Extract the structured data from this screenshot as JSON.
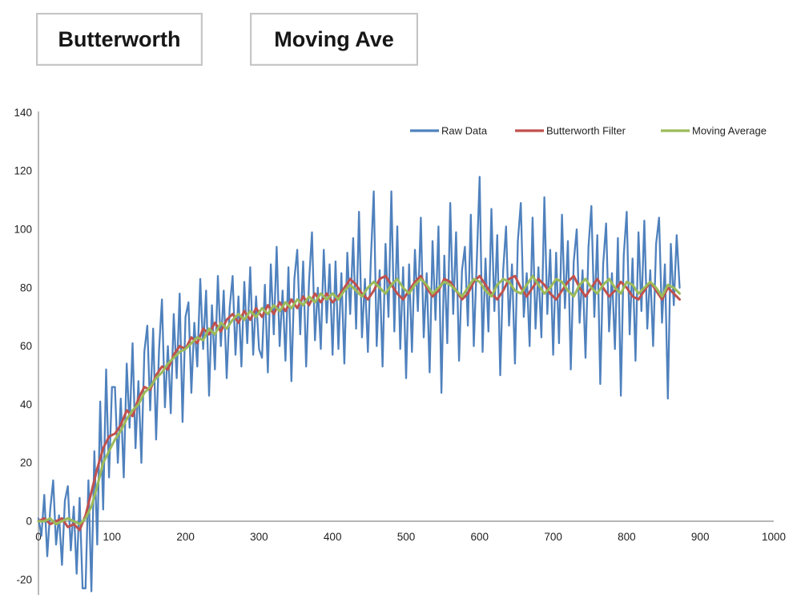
{
  "buttons": [
    {
      "label": "Butterworth"
    },
    {
      "label": "Moving Ave"
    }
  ],
  "chart_data": {
    "type": "line",
    "title": "",
    "xlabel": "",
    "ylabel": "",
    "xlim": [
      0,
      1000
    ],
    "ylim": [
      -20,
      140
    ],
    "x_ticks": [
      0,
      100,
      200,
      300,
      400,
      500,
      600,
      700,
      800,
      900,
      1000
    ],
    "y_ticks": [
      140,
      120,
      100,
      80,
      60,
      40,
      20,
      0,
      -20
    ],
    "grid": false,
    "legend_position": "top-right-inside",
    "colors": {
      "axis": "#9d9d9d",
      "tick_text": "#1f1f1f",
      "raw": "#4F81BD",
      "butterworth": "#C0504D",
      "moving_average": "#9BBB59"
    },
    "series": [
      {
        "name": "Raw Data",
        "color": "#4F81BD",
        "stroke_width": 2.3,
        "x_start": 0,
        "x_step": 4,
        "values": [
          1,
          -5,
          9,
          -12,
          4,
          14,
          -8,
          2,
          -15,
          7,
          12,
          -10,
          5,
          -18,
          8,
          -23,
          -23,
          14,
          -24,
          24,
          -8,
          41,
          4,
          52,
          15,
          46,
          46,
          20,
          42,
          15,
          54,
          32,
          61,
          25,
          48,
          20,
          58,
          67,
          38,
          66,
          28,
          59,
          76,
          39,
          60,
          37,
          71,
          49,
          78,
          34,
          70,
          75,
          44,
          68,
          53,
          83,
          59,
          79,
          43,
          74,
          52,
          84,
          60,
          79,
          49,
          73,
          84,
          57,
          77,
          53,
          82,
          61,
          87,
          57,
          77,
          59,
          56,
          81,
          51,
          88,
          64,
          94,
          60,
          79,
          55,
          87,
          48,
          83,
          93,
          64,
          89,
          53,
          82,
          99,
          62,
          80,
          59,
          93,
          68,
          88,
          57,
          89,
          59,
          85,
          54,
          92,
          71,
          97,
          66,
          106,
          63,
          83,
          58,
          89,
          113,
          60,
          86,
          53,
          95,
          70,
          113,
          65,
          101,
          59,
          87,
          49,
          88,
          58,
          93,
          72,
          104,
          63,
          85,
          51,
          96,
          69,
          101,
          44,
          91,
          61,
          109,
          71,
          99,
          55,
          86,
          94,
          67,
          105,
          60,
          88,
          118,
          58,
          90,
          65,
          107,
          72,
          98,
          50,
          86,
          101,
          67,
          88,
          54,
          96,
          109,
          70,
          85,
          60,
          104,
          66,
          87,
          63,
          111,
          71,
          93,
          57,
          92,
          61,
          105,
          73,
          96,
          52,
          89,
          100,
          68,
          86,
          56,
          94,
          108,
          70,
          98,
          47,
          88,
          102,
          65,
          85,
          59,
          97,
          43,
          91,
          106,
          64,
          90,
          55,
          99,
          72,
          103,
          66,
          86,
          60,
          95,
          104,
          68,
          88,
          42,
          95,
          74,
          98,
          80
        ]
      },
      {
        "name": "Butterworth Filter",
        "color": "#C0504D",
        "stroke_width": 3,
        "x_start": 0,
        "x_step": 8,
        "values": [
          0,
          1,
          -1,
          0,
          1,
          -2,
          -1,
          -3,
          2,
          10,
          18,
          25,
          29,
          30,
          33,
          38,
          36,
          42,
          46,
          45,
          50,
          53,
          52,
          57,
          60,
          59,
          63,
          61,
          66,
          64,
          68,
          65,
          69,
          71,
          68,
          72,
          69,
          73,
          70,
          74,
          71,
          75,
          72,
          76,
          73,
          77,
          74,
          78,
          75,
          78,
          75,
          77,
          80,
          83,
          81,
          78,
          76,
          79,
          83,
          84,
          81,
          78,
          76,
          79,
          82,
          84,
          80,
          77,
          79,
          83,
          82,
          79,
          76,
          78,
          82,
          84,
          81,
          78,
          76,
          79,
          83,
          84,
          80,
          77,
          80,
          83,
          81,
          78,
          76,
          79,
          82,
          84,
          80,
          77,
          80,
          83,
          80,
          77,
          79,
          82,
          80,
          77,
          76,
          79,
          82,
          79,
          76,
          80,
          78,
          76
        ]
      },
      {
        "name": "Moving Average",
        "color": "#9BBB59",
        "stroke_width": 3,
        "x_start": 0,
        "x_step": 8,
        "values": [
          0,
          0,
          1,
          -1,
          0,
          1,
          0,
          -1,
          1,
          5,
          12,
          20,
          24,
          28,
          31,
          35,
          38,
          40,
          44,
          46,
          49,
          51,
          54,
          56,
          58,
          59,
          61,
          63,
          62,
          66,
          64,
          68,
          66,
          69,
          71,
          69,
          72,
          70,
          73,
          71,
          74,
          72,
          75,
          73,
          76,
          74,
          77,
          75,
          78,
          76,
          78,
          76,
          79,
          81,
          79,
          77,
          80,
          82,
          80,
          78,
          81,
          83,
          80,
          78,
          81,
          83,
          81,
          78,
          80,
          82,
          81,
          79,
          77,
          80,
          83,
          82,
          79,
          77,
          81,
          83,
          82,
          79,
          78,
          81,
          84,
          81,
          78,
          80,
          83,
          82,
          79,
          77,
          81,
          83,
          80,
          78,
          81,
          83,
          80,
          78,
          82,
          81,
          78,
          80,
          82,
          80,
          77,
          81,
          80,
          78
        ]
      }
    ]
  }
}
